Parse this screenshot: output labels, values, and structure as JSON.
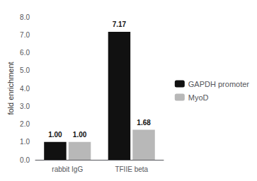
{
  "chart_data": {
    "type": "bar",
    "categories": [
      "rabbit IgG",
      "TFIIE beta"
    ],
    "series": [
      {
        "name": "GAPDH promoter",
        "color": "#111111",
        "values": [
          1.0,
          7.17
        ],
        "value_labels": [
          "1.00",
          "7.17"
        ]
      },
      {
        "name": "MyoD",
        "color": "#b8b8b8",
        "values": [
          1.0,
          1.68
        ],
        "value_labels": [
          "1.00",
          "1.68"
        ]
      }
    ],
    "ylabel": "fold enrichment",
    "ylim": [
      0,
      8.0
    ],
    "yticks": [
      {
        "value": 0.0,
        "label": "0.0"
      },
      {
        "value": 1.0,
        "label": "1.0"
      },
      {
        "value": 2.0,
        "label": "2.0"
      },
      {
        "value": 3.0,
        "label": "3.0"
      },
      {
        "value": 4.0,
        "label": "4.0"
      },
      {
        "value": 5.0,
        "label": "5.0"
      },
      {
        "value": 6.0,
        "label": "6.0"
      },
      {
        "value": 7.0,
        "label": "7.0"
      },
      {
        "value": 8.0,
        "label": "8.0"
      }
    ],
    "grid": false,
    "legend": "right",
    "data_labels": true
  }
}
